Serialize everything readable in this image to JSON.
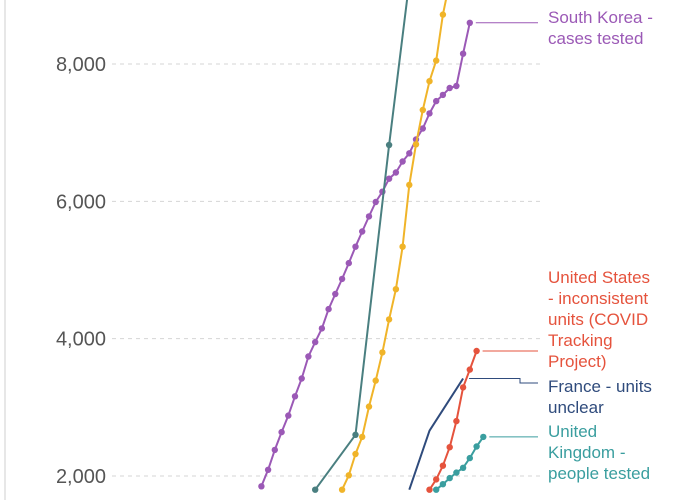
{
  "chart_data": {
    "type": "line",
    "title": "",
    "xlabel": "",
    "ylabel": "",
    "ylim": [
      1800,
      9200
    ],
    "y_ticks": [
      {
        "value": 2000,
        "label": "2,000"
      },
      {
        "value": 4000,
        "label": "4,000"
      },
      {
        "value": 6000,
        "label": "6,000"
      },
      {
        "value": 8000,
        "label": "8,000"
      }
    ],
    "grid": true,
    "legend": "labels at line ends (right)",
    "series": [
      {
        "key": "south_korea",
        "name": "South Korea - cases tested",
        "label_lines": [
          "South Korea -",
          "cases tested"
        ],
        "color": "#9b59b6",
        "marker": true,
        "points": [
          [
            24,
            1850
          ],
          [
            25,
            2090
          ],
          [
            26,
            2380
          ],
          [
            27,
            2640
          ],
          [
            28,
            2880
          ],
          [
            29,
            3160
          ],
          [
            30,
            3420
          ],
          [
            31,
            3740
          ],
          [
            32,
            3950
          ],
          [
            33,
            4150
          ],
          [
            34,
            4430
          ],
          [
            35,
            4650
          ],
          [
            36,
            4870
          ],
          [
            37,
            5100
          ],
          [
            38,
            5340
          ],
          [
            39,
            5560
          ],
          [
            40,
            5780
          ],
          [
            41,
            5990
          ],
          [
            42,
            6140
          ],
          [
            43,
            6330
          ],
          [
            44,
            6420
          ],
          [
            45,
            6580
          ],
          [
            46,
            6700
          ],
          [
            47,
            6900
          ],
          [
            48,
            7060
          ],
          [
            49,
            7280
          ],
          [
            50,
            7460
          ],
          [
            51,
            7550
          ],
          [
            52,
            7650
          ],
          [
            53,
            7680
          ],
          [
            54,
            8150
          ],
          [
            55,
            8600
          ]
        ]
      },
      {
        "key": "teal_unlabeled",
        "color": "#4a7f80",
        "marker": true,
        "points": [
          [
            32,
            1800
          ],
          [
            38,
            2600
          ],
          [
            43,
            6820
          ],
          [
            46,
            9200
          ]
        ]
      },
      {
        "key": "orange_unlabeled",
        "color": "#f0b429",
        "marker": true,
        "points": [
          [
            36,
            1800
          ],
          [
            37,
            2010
          ],
          [
            38,
            2320
          ],
          [
            39,
            2570
          ],
          [
            40,
            3010
          ],
          [
            41,
            3390
          ],
          [
            42,
            3800
          ],
          [
            43,
            4280
          ],
          [
            44,
            4720
          ],
          [
            45,
            5340
          ],
          [
            46,
            6240
          ],
          [
            47,
            6830
          ],
          [
            48,
            7330
          ],
          [
            49,
            7750
          ],
          [
            50,
            8050
          ],
          [
            51,
            8720
          ],
          [
            52,
            9200
          ]
        ]
      },
      {
        "key": "united_states",
        "name": "United States - inconsistent units (COVID Tracking Project)",
        "label_lines": [
          "United States",
          "- inconsistent",
          "units (COVID",
          "Tracking",
          "Project)"
        ],
        "color": "#e5533d",
        "marker": true,
        "points": [
          [
            49,
            1800
          ],
          [
            50,
            1950
          ],
          [
            51,
            2150
          ],
          [
            52,
            2420
          ],
          [
            53,
            2800
          ],
          [
            54,
            3290
          ],
          [
            55,
            3550
          ],
          [
            56,
            3820
          ]
        ]
      },
      {
        "key": "france",
        "name": "France - units unclear",
        "label_lines": [
          "France - units",
          "unclear"
        ],
        "color": "#2f4b7c",
        "marker": false,
        "points": [
          [
            46,
            1800
          ],
          [
            49,
            2660
          ],
          [
            54,
            3420
          ]
        ]
      },
      {
        "key": "united_kingdom",
        "name": "United Kingdom - people tested",
        "label_lines": [
          "United",
          "Kingdom -",
          "people tested"
        ],
        "color": "#3a9e9f",
        "marker": true,
        "points": [
          [
            50,
            1800
          ],
          [
            51,
            1880
          ],
          [
            52,
            1970
          ],
          [
            53,
            2050
          ],
          [
            54,
            2120
          ],
          [
            55,
            2260
          ],
          [
            56,
            2430
          ],
          [
            57,
            2570
          ]
        ]
      }
    ]
  }
}
